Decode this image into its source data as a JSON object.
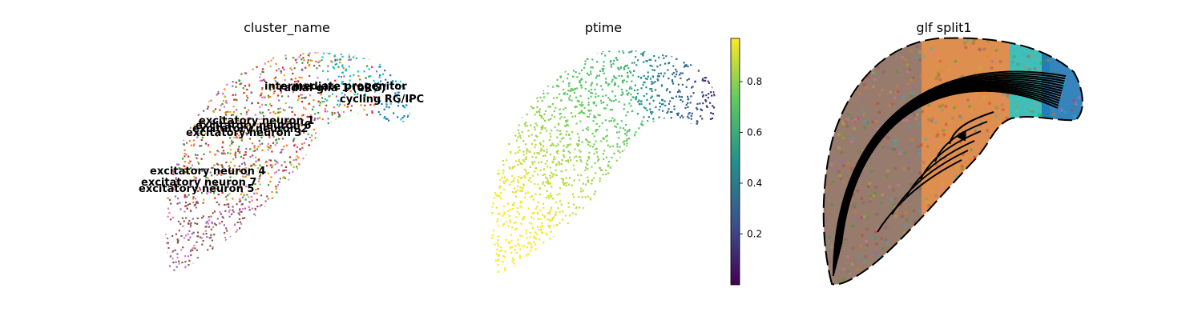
{
  "chart_data": [
    {
      "type": "scatter",
      "title": "cluster_name",
      "cluster_labels": [
        {
          "text": "intermediate progenitor",
          "color": "#17becf"
        },
        {
          "text": "radial glia 1 (oRG)",
          "color": "#bcbd22"
        },
        {
          "text": "cycling RG/IPC",
          "color": "#1f77b4"
        },
        {
          "text": "excitatory neuron 1",
          "color": "#ff7f0e"
        },
        {
          "text": "excitatory neuron 6",
          "color": "#2ca02c"
        },
        {
          "text": "excitatory neuron 2",
          "color": "#d62728"
        },
        {
          "text": "excitatory neuron 3",
          "color": "#9467bd"
        },
        {
          "text": "excitatory neuron 4",
          "color": "#8c564b"
        },
        {
          "text": "excitatory neuron 7",
          "color": "#e377c2"
        },
        {
          "text": "excitatory neuron 5",
          "color": "#7f7f7f"
        }
      ]
    },
    {
      "type": "scatter",
      "title": "ptime",
      "colormap": "viridis",
      "colorbar": {
        "range": [
          0.0,
          0.97
        ],
        "ticks": [
          0.2,
          0.4,
          0.6,
          0.8
        ]
      }
    },
    {
      "type": "scatter",
      "title": "glf split1",
      "overlay": "streamlines with arrows",
      "region_colors": {
        "left": "#8c6d5c",
        "middle": "#d87a30",
        "right_top": "#2cb7b0",
        "right_tip": "#1f77b4"
      }
    }
  ]
}
